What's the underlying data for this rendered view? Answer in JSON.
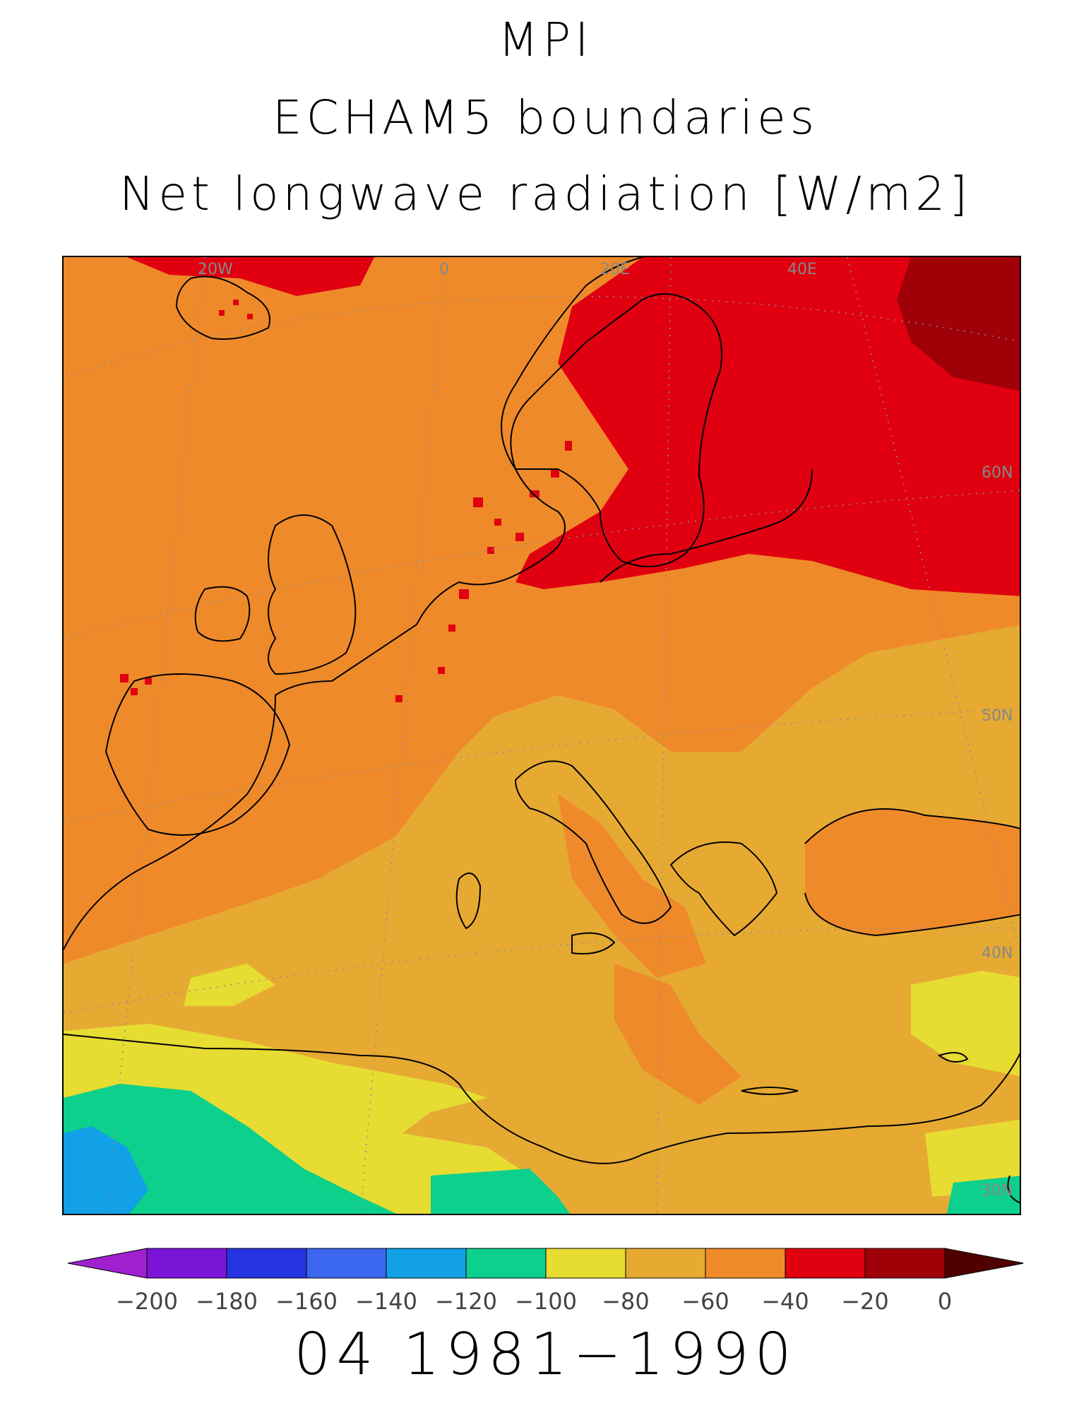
{
  "title": {
    "line1": "MPI",
    "line2": "ECHAM5 boundaries",
    "line3": "Net longwave radiation [W/m2]"
  },
  "footer": "04 1981−1990",
  "map": {
    "grid_labels": {
      "lon": [
        "20W",
        "0",
        "20E",
        "40E"
      ],
      "lat": [
        "60N",
        "50N",
        "40N",
        "30N"
      ]
    }
  },
  "colorbar": {
    "bins": [
      {
        "from": -200,
        "to": -180,
        "color": "#7a14d6"
      },
      {
        "from": -180,
        "to": -160,
        "color": "#2634e0"
      },
      {
        "from": -160,
        "to": -140,
        "color": "#3a66f0"
      },
      {
        "from": -140,
        "to": -120,
        "color": "#12a0e6"
      },
      {
        "from": -120,
        "to": -100,
        "color": "#0cd08c"
      },
      {
        "from": -100,
        "to": -80,
        "color": "#e6dc32"
      },
      {
        "from": -80,
        "to": -60,
        "color": "#e6aa32"
      },
      {
        "from": -60,
        "to": -40,
        "color": "#ef8a2a"
      },
      {
        "from": -40,
        "to": -20,
        "color": "#e00010"
      },
      {
        "from": -20,
        "to": 0,
        "color": "#a00008"
      }
    ],
    "under_color": "#a020d0",
    "over_color": "#500000",
    "tick_labels": [
      "−200",
      "−180",
      "−160",
      "−140",
      "−120",
      "−100",
      "−80",
      "−60",
      "−40",
      "−20",
      "0"
    ]
  }
}
